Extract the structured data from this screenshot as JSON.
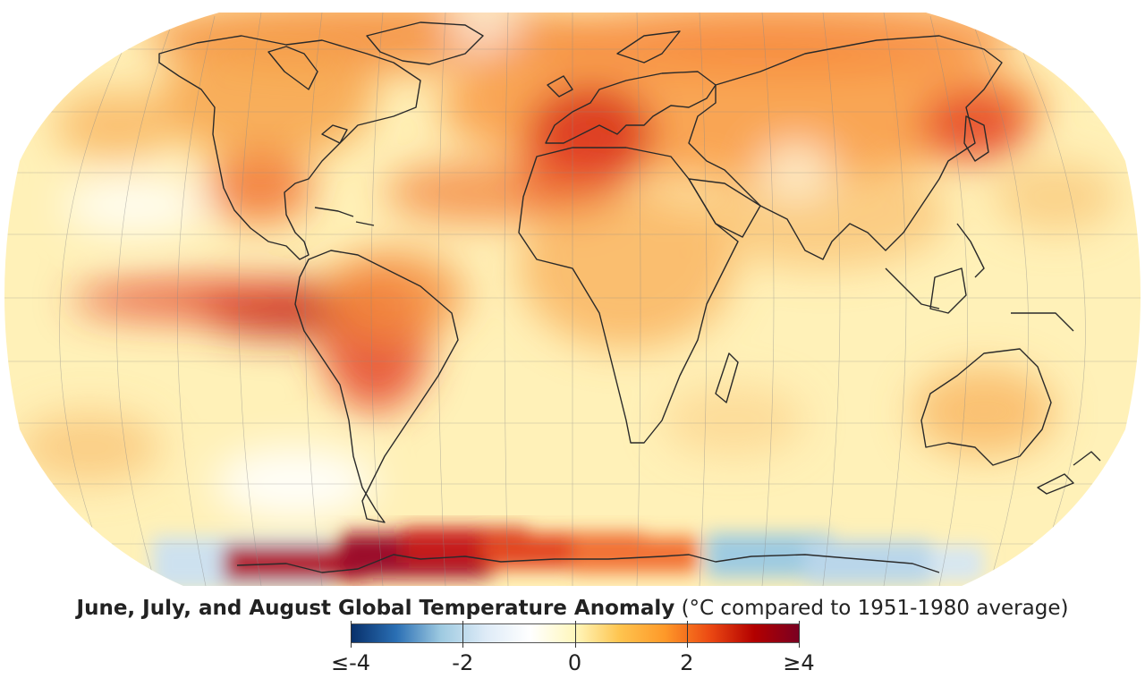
{
  "figure": {
    "title_bold": "June, July, and August Global Temperature Anomaly",
    "title_rest": "(°C compared to 1951-1980 average)"
  },
  "colorbar": {
    "min": -4,
    "max": 4,
    "unit": "°C",
    "colors": [
      "#08306b",
      "#2a6fb4",
      "#9ecae1",
      "#deebf7",
      "#ffffff",
      "#fff7bc",
      "#fec44f",
      "#fe9929",
      "#ec4a13",
      "#b30000",
      "#7a0021"
    ],
    "ticks": [
      {
        "value": -4,
        "label": "≤-4"
      },
      {
        "value": -2,
        "label": "-2"
      },
      {
        "value": 0,
        "label": "0"
      },
      {
        "value": 2,
        "label": "2"
      },
      {
        "value": 4,
        "label": "≥4"
      }
    ]
  },
  "map": {
    "projection": "Robinson",
    "graticule": true,
    "coastlines": true,
    "background_color": "#fff1b8"
  }
}
